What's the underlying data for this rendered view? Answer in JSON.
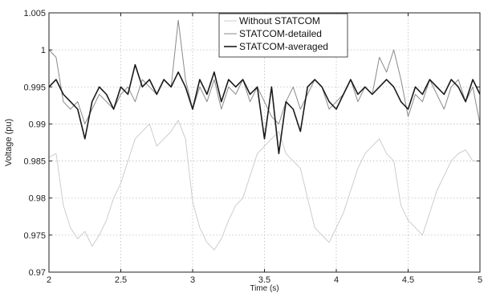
{
  "chart_data": {
    "type": "line",
    "title": "",
    "xlabel": "Time (s)",
    "ylabel": "Voltage (pu)",
    "xlim": [
      2,
      5
    ],
    "ylim": [
      0.97,
      1.005
    ],
    "x_ticks": [
      2,
      2.5,
      3,
      3.5,
      4,
      4.5,
      5
    ],
    "x_tick_labels": [
      "2",
      "2.5",
      "3",
      "3.5",
      "4",
      "4.5",
      "5"
    ],
    "y_ticks": [
      0.97,
      0.975,
      0.98,
      0.985,
      0.99,
      0.995,
      1,
      1.005
    ],
    "y_tick_labels": [
      "0.97",
      "0.975",
      "0.98",
      "0.985",
      "0.99",
      "0.995",
      "1",
      "1.005"
    ],
    "grid": true,
    "legend_position": "top-center",
    "series": [
      {
        "name": "Without STATCOM",
        "color": "#c8c8c8",
        "x": [
          2.0,
          2.05,
          2.1,
          2.15,
          2.2,
          2.25,
          2.3,
          2.35,
          2.4,
          2.45,
          2.5,
          2.55,
          2.6,
          2.65,
          2.7,
          2.75,
          2.8,
          2.85,
          2.9,
          2.95,
          3.0,
          3.05,
          3.1,
          3.15,
          3.2,
          3.25,
          3.3,
          3.35,
          3.4,
          3.45,
          3.5,
          3.55,
          3.6,
          3.65,
          3.7,
          3.75,
          3.8,
          3.85,
          3.9,
          3.95,
          4.0,
          4.05,
          4.1,
          4.15,
          4.2,
          4.25,
          4.3,
          4.35,
          4.4,
          4.45,
          4.5,
          4.55,
          4.6,
          4.65,
          4.7,
          4.75,
          4.8,
          4.85,
          4.9,
          4.95,
          5.0
        ],
        "values": [
          0.9855,
          0.986,
          0.979,
          0.976,
          0.9745,
          0.9755,
          0.9735,
          0.975,
          0.977,
          0.98,
          0.982,
          0.985,
          0.988,
          0.989,
          0.99,
          0.987,
          0.988,
          0.989,
          0.9905,
          0.988,
          0.9795,
          0.976,
          0.974,
          0.973,
          0.9745,
          0.977,
          0.979,
          0.98,
          0.983,
          0.986,
          0.987,
          0.988,
          0.989,
          0.986,
          0.985,
          0.984,
          0.98,
          0.976,
          0.975,
          0.974,
          0.976,
          0.978,
          0.981,
          0.984,
          0.986,
          0.987,
          0.988,
          0.986,
          0.985,
          0.979,
          0.977,
          0.976,
          0.975,
          0.978,
          0.981,
          0.983,
          0.985,
          0.986,
          0.9865,
          0.985,
          0.985
        ]
      },
      {
        "name": "STATCOM-detailed",
        "color": "#8a8a8a",
        "x": [
          2.0,
          2.05,
          2.1,
          2.15,
          2.2,
          2.25,
          2.3,
          2.35,
          2.4,
          2.45,
          2.5,
          2.55,
          2.6,
          2.65,
          2.7,
          2.75,
          2.8,
          2.85,
          2.9,
          2.95,
          3.0,
          3.05,
          3.1,
          3.15,
          3.2,
          3.25,
          3.3,
          3.35,
          3.4,
          3.45,
          3.5,
          3.55,
          3.6,
          3.65,
          3.7,
          3.75,
          3.8,
          3.85,
          3.9,
          3.95,
          4.0,
          4.05,
          4.1,
          4.15,
          4.2,
          4.25,
          4.3,
          4.35,
          4.4,
          4.45,
          4.5,
          4.55,
          4.6,
          4.65,
          4.7,
          4.75,
          4.8,
          4.85,
          4.9,
          4.95,
          5.0
        ],
        "values": [
          1.0,
          0.999,
          0.993,
          0.992,
          0.993,
          0.99,
          0.992,
          0.994,
          0.993,
          0.992,
          0.994,
          0.995,
          0.993,
          0.996,
          0.995,
          0.994,
          0.996,
          0.995,
          1.004,
          0.996,
          0.992,
          0.995,
          0.993,
          0.996,
          0.992,
          0.995,
          0.994,
          0.996,
          0.993,
          0.995,
          0.993,
          0.991,
          0.99,
          0.993,
          0.995,
          0.992,
          0.994,
          0.996,
          0.995,
          0.992,
          0.993,
          0.994,
          0.996,
          0.993,
          0.995,
          0.994,
          0.999,
          0.997,
          1.0,
          0.996,
          0.991,
          0.994,
          0.993,
          0.996,
          0.994,
          0.992,
          0.995,
          0.996,
          0.993,
          0.995,
          0.99
        ]
      },
      {
        "name": "STATCOM-averaged",
        "color": "#1a1a1a",
        "x": [
          2.0,
          2.05,
          2.1,
          2.15,
          2.2,
          2.25,
          2.3,
          2.35,
          2.4,
          2.45,
          2.5,
          2.55,
          2.6,
          2.65,
          2.7,
          2.75,
          2.8,
          2.85,
          2.9,
          2.95,
          3.0,
          3.05,
          3.1,
          3.15,
          3.2,
          3.25,
          3.3,
          3.35,
          3.4,
          3.45,
          3.5,
          3.55,
          3.6,
          3.65,
          3.7,
          3.75,
          3.8,
          3.85,
          3.9,
          3.95,
          4.0,
          4.05,
          4.1,
          4.15,
          4.2,
          4.25,
          4.3,
          4.35,
          4.4,
          4.45,
          4.5,
          4.55,
          4.6,
          4.65,
          4.7,
          4.75,
          4.8,
          4.85,
          4.9,
          4.95,
          5.0
        ],
        "values": [
          0.995,
          0.996,
          0.994,
          0.993,
          0.992,
          0.988,
          0.993,
          0.995,
          0.994,
          0.992,
          0.995,
          0.994,
          0.998,
          0.995,
          0.996,
          0.994,
          0.996,
          0.995,
          0.997,
          0.995,
          0.992,
          0.996,
          0.994,
          0.997,
          0.993,
          0.996,
          0.995,
          0.996,
          0.994,
          0.995,
          0.988,
          0.995,
          0.986,
          0.993,
          0.992,
          0.989,
          0.995,
          0.996,
          0.995,
          0.993,
          0.992,
          0.994,
          0.996,
          0.994,
          0.995,
          0.994,
          0.995,
          0.996,
          0.995,
          0.993,
          0.992,
          0.995,
          0.994,
          0.996,
          0.995,
          0.994,
          0.996,
          0.995,
          0.993,
          0.996,
          0.994
        ]
      }
    ]
  }
}
